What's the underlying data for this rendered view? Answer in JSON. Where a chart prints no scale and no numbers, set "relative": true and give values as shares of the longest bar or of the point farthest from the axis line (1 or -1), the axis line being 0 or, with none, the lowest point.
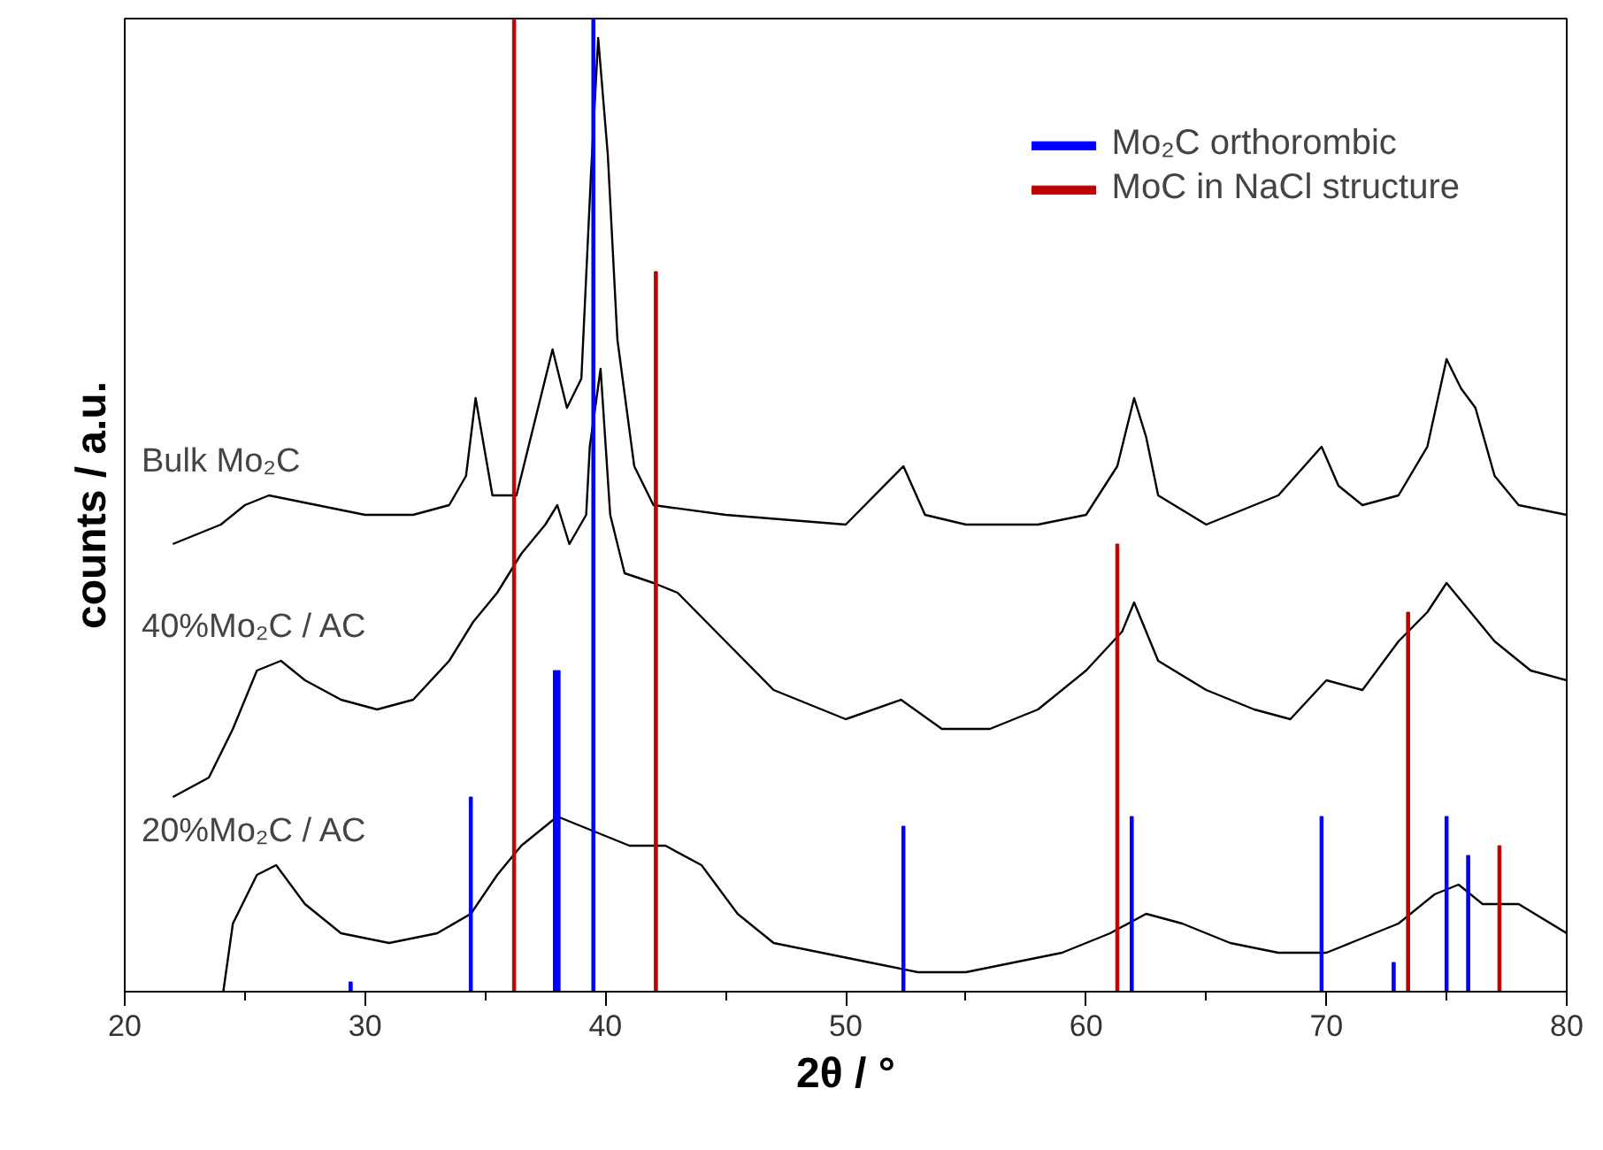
{
  "chart_data": {
    "type": "line",
    "relative": true,
    "xlabel": "2θ / °",
    "ylabel": "counts / a.u.",
    "xlim": [
      20,
      80
    ],
    "xticks": [
      20,
      30,
      40,
      50,
      60,
      70,
      80
    ],
    "grid": false,
    "legend": "top right",
    "tick_labels": "x",
    "series": [
      {
        "name": "Bulk Mo₂C",
        "color": "#000000",
        "x": [
          22,
          24,
          25,
          26,
          28,
          30,
          32,
          33.5,
          34.2,
          34.6,
          35.3,
          36.3,
          37.8,
          38.4,
          39.0,
          39.4,
          39.7,
          40.1,
          40.5,
          41.2,
          42,
          45,
          50,
          52.4,
          53.3,
          55,
          58,
          60,
          61.3,
          62,
          62.5,
          63,
          65,
          68,
          69.8,
          70.5,
          71.5,
          73,
          74.2,
          75,
          75.6,
          76.2,
          77,
          78,
          80
        ],
        "values": [
          0.46,
          0.48,
          0.5,
          0.51,
          0.5,
          0.49,
          0.49,
          0.5,
          0.53,
          0.61,
          0.51,
          0.51,
          0.66,
          0.6,
          0.63,
          0.84,
          0.98,
          0.86,
          0.67,
          0.54,
          0.5,
          0.49,
          0.48,
          0.54,
          0.49,
          0.48,
          0.48,
          0.49,
          0.54,
          0.61,
          0.57,
          0.51,
          0.48,
          0.51,
          0.56,
          0.52,
          0.5,
          0.51,
          0.56,
          0.65,
          0.62,
          0.6,
          0.53,
          0.5,
          0.49
        ]
      },
      {
        "name": "40%Mo₂C / AC",
        "color": "#000000",
        "x": [
          22,
          23.5,
          24.5,
          25.5,
          26.5,
          27.5,
          29,
          30.5,
          32,
          33.5,
          34.5,
          35.5,
          36.5,
          37.5,
          38,
          38.5,
          39.2,
          39.35,
          39.8,
          40.2,
          40.8,
          42,
          43,
          45,
          47,
          49,
          50,
          52.3,
          54,
          56,
          58,
          60,
          61.5,
          62,
          63,
          65,
          67,
          68.5,
          70,
          71.5,
          73,
          74.2,
          75,
          76,
          77,
          78.5,
          80
        ],
        "values": [
          0.2,
          0.22,
          0.27,
          0.33,
          0.34,
          0.32,
          0.3,
          0.29,
          0.3,
          0.34,
          0.38,
          0.41,
          0.45,
          0.48,
          0.5,
          0.46,
          0.49,
          0.56,
          0.64,
          0.49,
          0.43,
          0.42,
          0.41,
          0.36,
          0.31,
          0.29,
          0.28,
          0.3,
          0.27,
          0.27,
          0.29,
          0.33,
          0.37,
          0.4,
          0.34,
          0.31,
          0.29,
          0.28,
          0.32,
          0.31,
          0.36,
          0.39,
          0.42,
          0.39,
          0.36,
          0.33,
          0.32
        ]
      },
      {
        "name": "20%Mo₂C / AC",
        "color": "#000000",
        "x": [
          24.1,
          24.5,
          25.5,
          26.3,
          27.5,
          29,
          31,
          33,
          34.4,
          35.5,
          36.5,
          37.5,
          38,
          39,
          40,
          41,
          42.5,
          44,
          45.5,
          47,
          49,
          51,
          53,
          55,
          57,
          59,
          61,
          62.5,
          64,
          66,
          68,
          70,
          71,
          73,
          74.5,
          75.5,
          76.5,
          78,
          80
        ],
        "values": [
          0.0,
          0.07,
          0.12,
          0.13,
          0.09,
          0.06,
          0.05,
          0.06,
          0.08,
          0.12,
          0.15,
          0.17,
          0.18,
          0.17,
          0.16,
          0.15,
          0.15,
          0.13,
          0.08,
          0.05,
          0.04,
          0.03,
          0.02,
          0.02,
          0.03,
          0.04,
          0.06,
          0.08,
          0.07,
          0.05,
          0.04,
          0.04,
          0.05,
          0.07,
          0.1,
          0.11,
          0.09,
          0.09,
          0.06
        ]
      },
      {
        "name": "Mo₂C orthorombic",
        "type": "bar",
        "color": "#0000ff",
        "x": [
          29.4,
          34.4,
          37.9,
          38.05,
          39.5,
          52.4,
          61.9,
          69.8,
          72.8,
          75.0,
          75.9
        ],
        "values": [
          0.01,
          0.2,
          0.33,
          0.33,
          1.0,
          0.17,
          0.18,
          0.18,
          0.03,
          0.18,
          0.14
        ]
      },
      {
        "name": "MoC in NaCl structure",
        "type": "bar",
        "color": "#c00000",
        "x": [
          36.2,
          42.1,
          61.3,
          73.4,
          77.2
        ],
        "values": [
          1.0,
          0.74,
          0.46,
          0.39,
          0.15
        ]
      }
    ]
  }
}
